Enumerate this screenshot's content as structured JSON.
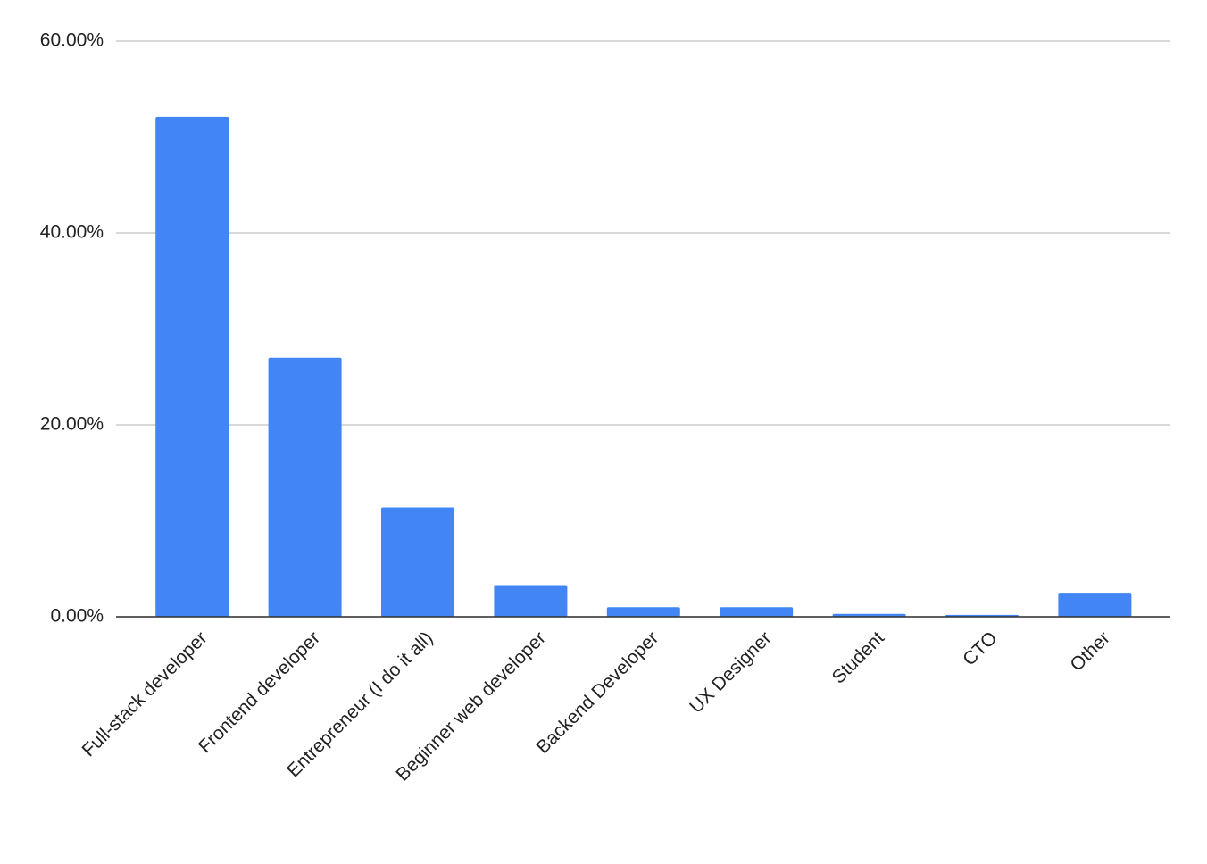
{
  "chart_data": {
    "type": "bar",
    "categories": [
      "Full-stack developer",
      "Frontend developer",
      "Entrepreneur (I do it all)",
      "Beginner web developer",
      "Backend Developer",
      "UX Designer",
      "Student",
      "CTO",
      "Other"
    ],
    "values": [
      52.1,
      27.0,
      11.4,
      3.3,
      1.0,
      1.0,
      0.3,
      0.2,
      2.5
    ],
    "color": "#4285f4",
    "ylim": [
      0,
      60
    ],
    "yticks": [
      {
        "value": 0,
        "label": "0.00%"
      },
      {
        "value": 20,
        "label": "20.00%"
      },
      {
        "value": 40,
        "label": "40.00%"
      },
      {
        "value": 60,
        "label": "60.00%"
      }
    ],
    "grid": true
  }
}
